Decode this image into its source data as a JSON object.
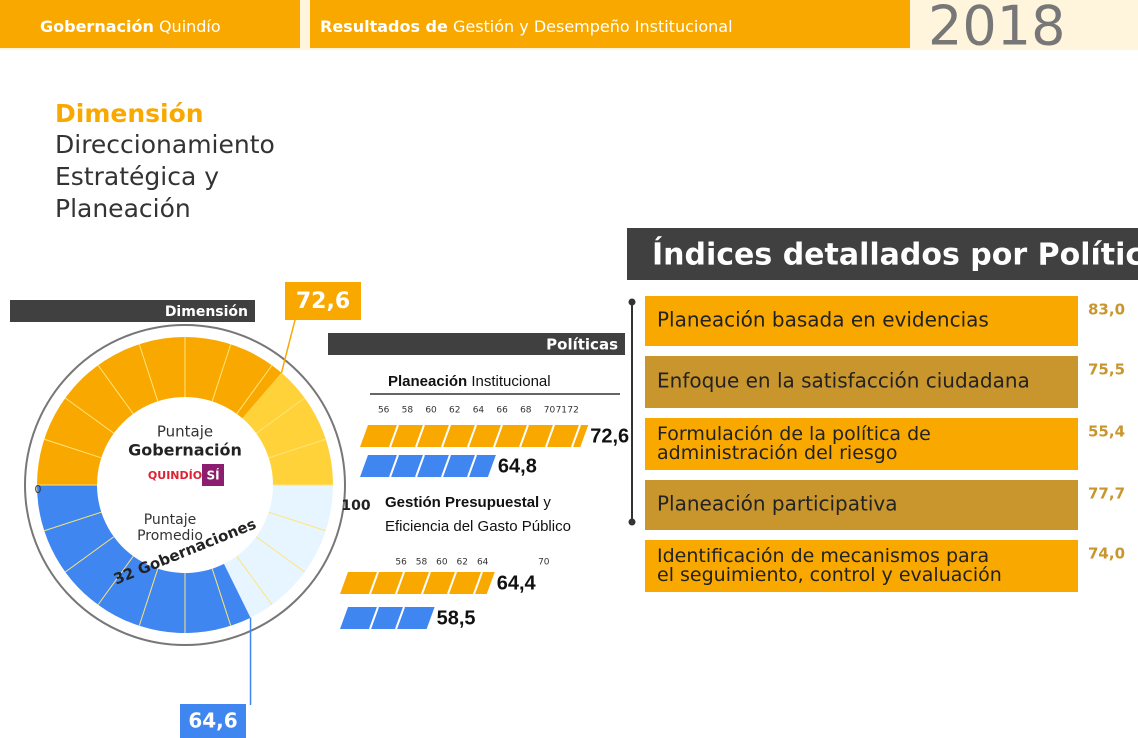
{
  "header": {
    "brand_bold": "Gobernación",
    "brand": "Quindío",
    "subtitle_bold": "Resultados de",
    "subtitle": "Gestión y Desempeño Institucional",
    "year": "2018"
  },
  "dimension": {
    "label": "Dimensión",
    "name_lines": [
      "Direccionamiento",
      "Estratégica y",
      "Planeación"
    ]
  },
  "gauge": {
    "header": "Dimensión",
    "scale": [
      0,
      100
    ],
    "gobernacion": {
      "label_small": "Puntaje",
      "label_bold": "Gobernación",
      "logo": "QUINDÍO",
      "logo_mark": "SÍ",
      "value": 72.6,
      "value_label": "72,6"
    },
    "promedio": {
      "label_small_lines": [
        "Puntaje",
        "Promedio"
      ],
      "label_bold": "32 Gobernaciones",
      "value": 64.6,
      "value_label": "64,6"
    }
  },
  "politicas": {
    "header": "Políticas",
    "groups": [
      {
        "name_bold": "Planeación",
        "name": "Institucional",
        "xlim": [
          54,
          73
        ],
        "xticks": [
          56,
          58,
          60,
          62,
          64,
          66,
          68,
          70,
          71,
          72
        ],
        "gobernacion": 72.6,
        "gobernacion_label": "72,6",
        "promedio": 64.8,
        "promedio_label": "64,8"
      },
      {
        "name_bold": "Gestión Presupuestal",
        "name": "y",
        "name_line2": "Eficiencia del Gasto Público",
        "xlim": [
          50,
          71
        ],
        "xticks": [
          56,
          58,
          60,
          62,
          64,
          70
        ],
        "gobernacion": 64.4,
        "gobernacion_label": "64,4",
        "promedio": 58.5,
        "promedio_label": "58,5"
      }
    ]
  },
  "indices": {
    "title": "Índices detallados por Políticas",
    "items": [
      {
        "name_lines": [
          "Planeación basada en evidencias"
        ],
        "value": 83.0,
        "value_label": "83,0"
      },
      {
        "name_lines": [
          "Enfoque en la satisfacción ciudadana"
        ],
        "value": 75.5,
        "value_label": "75,5"
      },
      {
        "name_lines": [
          "Formulación de la política de",
          "administración del riesgo"
        ],
        "value": 55.4,
        "value_label": "55,4"
      },
      {
        "name_lines": [
          "Planeación participativa"
        ],
        "value": 77.7,
        "value_label": "77,7"
      },
      {
        "name_lines": [
          "Identificación de mecanismos para",
          "el seguimiento, control y evaluación"
        ],
        "value": 74.0,
        "value_label": "74,0"
      }
    ]
  }
}
